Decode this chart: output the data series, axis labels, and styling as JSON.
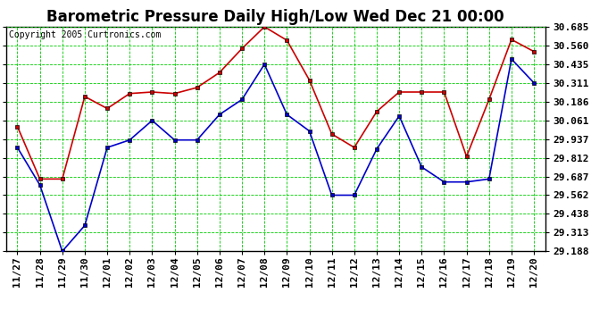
{
  "title": "Barometric Pressure Daily High/Low Wed Dec 21 00:00",
  "copyright": "Copyright 2005 Curtronics.com",
  "x_labels": [
    "11/27",
    "11/28",
    "11/29",
    "11/30",
    "12/01",
    "12/02",
    "12/03",
    "12/04",
    "12/05",
    "12/06",
    "12/07",
    "12/08",
    "12/09",
    "12/10",
    "12/11",
    "12/12",
    "12/13",
    "12/14",
    "12/15",
    "12/16",
    "12/17",
    "12/18",
    "12/19",
    "12/20"
  ],
  "high_values": [
    30.02,
    29.67,
    29.67,
    30.22,
    30.14,
    30.24,
    30.25,
    30.24,
    30.28,
    30.38,
    30.54,
    30.685,
    30.595,
    30.33,
    29.97,
    29.88,
    30.12,
    30.25,
    30.25,
    30.25,
    29.82,
    30.2,
    30.6,
    30.52
  ],
  "low_values": [
    29.88,
    29.63,
    29.188,
    29.36,
    29.88,
    29.93,
    30.06,
    29.93,
    29.93,
    30.1,
    30.2,
    30.435,
    30.1,
    29.99,
    29.562,
    29.562,
    29.87,
    30.09,
    29.75,
    29.65,
    29.65,
    29.67,
    30.47,
    30.311
  ],
  "high_color": "#cc0000",
  "low_color": "#0000cc",
  "bg_color": "#ffffff",
  "plot_bg_color": "#ffffff",
  "grid_color": "#00cc00",
  "yticks": [
    29.188,
    29.313,
    29.438,
    29.562,
    29.687,
    29.812,
    29.937,
    30.061,
    30.186,
    30.311,
    30.435,
    30.56,
    30.685
  ],
  "ylim": [
    29.188,
    30.685
  ],
  "title_fontsize": 12,
  "tick_fontsize": 8,
  "copyright_fontsize": 7
}
